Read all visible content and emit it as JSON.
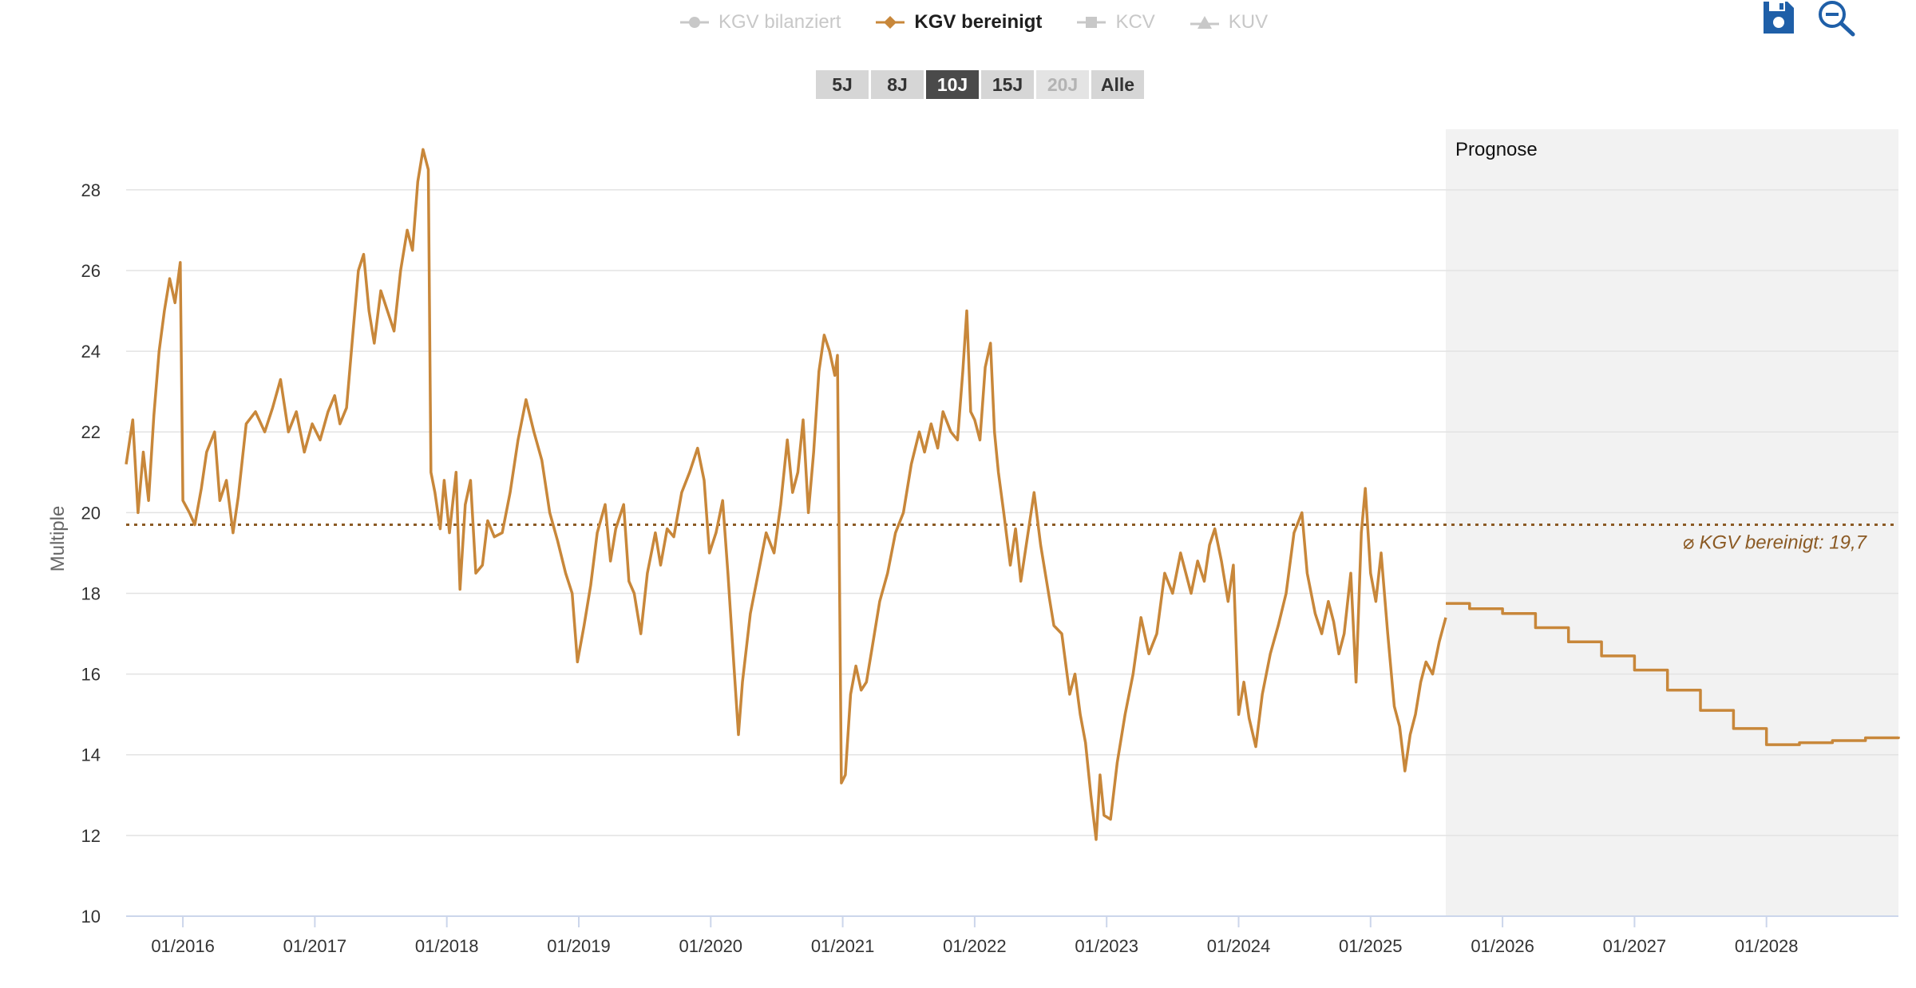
{
  "legend": [
    {
      "label": "KGV bilanziert",
      "marker": "circle",
      "active": false
    },
    {
      "label": "KGV bereinigt",
      "marker": "diamond",
      "active": true
    },
    {
      "label": "KCV",
      "marker": "square",
      "active": false
    },
    {
      "label": "KUV",
      "marker": "triangle",
      "active": false
    }
  ],
  "toolbar": {
    "save_icon": "save-icon",
    "zoom_out_icon": "zoom-out-icon"
  },
  "range_buttons": [
    {
      "label": "5J",
      "state": "normal"
    },
    {
      "label": "8J",
      "state": "normal"
    },
    {
      "label": "10J",
      "state": "selected"
    },
    {
      "label": "15J",
      "state": "normal"
    },
    {
      "label": "20J",
      "state": "disabled"
    },
    {
      "label": "Alle",
      "state": "normal"
    }
  ],
  "colors": {
    "series": "#c8873a",
    "mean_line": "#8b5a24",
    "forecast_bg": "#f2f2f2",
    "grid": "#e3e3e3",
    "button_selected": "#4a4a4a",
    "button_normal": "#d6d6d6"
  },
  "chart_data": {
    "type": "line",
    "ylabel": "Multiple",
    "ylim": [
      10,
      29.5
    ],
    "yticks": [
      10,
      12,
      14,
      16,
      18,
      20,
      22,
      24,
      26,
      28
    ],
    "xlim": [
      2015.57,
      2029.0
    ],
    "xtick_labels": [
      "01/2016",
      "01/2017",
      "01/2018",
      "01/2019",
      "01/2020",
      "01/2021",
      "01/2022",
      "01/2023",
      "01/2024",
      "01/2025",
      "01/2026",
      "01/2027",
      "01/2028"
    ],
    "xticks": [
      2016,
      2017,
      2018,
      2019,
      2020,
      2021,
      2022,
      2023,
      2024,
      2025,
      2026,
      2027,
      2028
    ],
    "forecast_start": 2025.57,
    "forecast_label": "Prognose",
    "mean": {
      "value": 19.7,
      "label": "⌀ KGV bereinigt: 19,7"
    },
    "series": [
      {
        "name": "KGV bereinigt",
        "points": [
          [
            2015.57,
            21.2
          ],
          [
            2015.62,
            22.3
          ],
          [
            2015.66,
            20.0
          ],
          [
            2015.7,
            21.5
          ],
          [
            2015.74,
            20.3
          ],
          [
            2015.78,
            22.4
          ],
          [
            2015.82,
            24.0
          ],
          [
            2015.86,
            25.0
          ],
          [
            2015.9,
            25.8
          ],
          [
            2015.94,
            25.2
          ],
          [
            2015.98,
            26.2
          ],
          [
            2016.0,
            20.3
          ],
          [
            2016.05,
            20.0
          ],
          [
            2016.09,
            19.7
          ],
          [
            2016.14,
            20.6
          ],
          [
            2016.18,
            21.5
          ],
          [
            2016.24,
            22.0
          ],
          [
            2016.28,
            20.3
          ],
          [
            2016.33,
            20.8
          ],
          [
            2016.38,
            19.5
          ],
          [
            2016.42,
            20.4
          ],
          [
            2016.48,
            22.2
          ],
          [
            2016.55,
            22.5
          ],
          [
            2016.62,
            22.0
          ],
          [
            2016.68,
            22.6
          ],
          [
            2016.74,
            23.3
          ],
          [
            2016.8,
            22.0
          ],
          [
            2016.86,
            22.5
          ],
          [
            2016.92,
            21.5
          ],
          [
            2016.98,
            22.2
          ],
          [
            2017.04,
            21.8
          ],
          [
            2017.1,
            22.5
          ],
          [
            2017.15,
            22.9
          ],
          [
            2017.19,
            22.2
          ],
          [
            2017.24,
            22.6
          ],
          [
            2017.29,
            24.5
          ],
          [
            2017.33,
            26.0
          ],
          [
            2017.37,
            26.4
          ],
          [
            2017.41,
            25.0
          ],
          [
            2017.45,
            24.2
          ],
          [
            2017.5,
            25.5
          ],
          [
            2017.55,
            25.0
          ],
          [
            2017.6,
            24.5
          ],
          [
            2017.65,
            26.0
          ],
          [
            2017.7,
            27.0
          ],
          [
            2017.74,
            26.5
          ],
          [
            2017.78,
            28.2
          ],
          [
            2017.82,
            29.0
          ],
          [
            2017.86,
            28.5
          ],
          [
            2017.88,
            21.0
          ],
          [
            2017.91,
            20.5
          ],
          [
            2017.95,
            19.6
          ],
          [
            2017.98,
            20.8
          ],
          [
            2018.02,
            19.5
          ],
          [
            2018.07,
            21.0
          ],
          [
            2018.1,
            18.1
          ],
          [
            2018.14,
            20.2
          ],
          [
            2018.18,
            20.8
          ],
          [
            2018.22,
            18.5
          ],
          [
            2018.27,
            18.7
          ],
          [
            2018.31,
            19.8
          ],
          [
            2018.36,
            19.4
          ],
          [
            2018.42,
            19.5
          ],
          [
            2018.48,
            20.5
          ],
          [
            2018.54,
            21.8
          ],
          [
            2018.6,
            22.8
          ],
          [
            2018.66,
            22.0
          ],
          [
            2018.72,
            21.3
          ],
          [
            2018.78,
            20.0
          ],
          [
            2018.84,
            19.3
          ],
          [
            2018.9,
            18.5
          ],
          [
            2018.95,
            18.0
          ],
          [
            2018.99,
            16.3
          ],
          [
            2019.04,
            17.2
          ],
          [
            2019.09,
            18.2
          ],
          [
            2019.14,
            19.5
          ],
          [
            2019.2,
            20.2
          ],
          [
            2019.24,
            18.8
          ],
          [
            2019.28,
            19.6
          ],
          [
            2019.34,
            20.2
          ],
          [
            2019.38,
            18.3
          ],
          [
            2019.42,
            18.0
          ],
          [
            2019.47,
            17.0
          ],
          [
            2019.52,
            18.5
          ],
          [
            2019.58,
            19.5
          ],
          [
            2019.62,
            18.7
          ],
          [
            2019.67,
            19.6
          ],
          [
            2019.72,
            19.4
          ],
          [
            2019.78,
            20.5
          ],
          [
            2019.84,
            21.0
          ],
          [
            2019.9,
            21.6
          ],
          [
            2019.95,
            20.8
          ],
          [
            2019.99,
            19.0
          ],
          [
            2020.04,
            19.5
          ],
          [
            2020.09,
            20.3
          ],
          [
            2020.13,
            18.5
          ],
          [
            2020.18,
            16.0
          ],
          [
            2020.21,
            14.5
          ],
          [
            2020.24,
            15.8
          ],
          [
            2020.3,
            17.5
          ],
          [
            2020.36,
            18.5
          ],
          [
            2020.42,
            19.5
          ],
          [
            2020.48,
            19.0
          ],
          [
            2020.53,
            20.2
          ],
          [
            2020.58,
            21.8
          ],
          [
            2020.62,
            20.5
          ],
          [
            2020.66,
            21.0
          ],
          [
            2020.7,
            22.3
          ],
          [
            2020.74,
            20.0
          ],
          [
            2020.78,
            21.5
          ],
          [
            2020.82,
            23.5
          ],
          [
            2020.86,
            24.4
          ],
          [
            2020.9,
            24.0
          ],
          [
            2020.94,
            23.4
          ],
          [
            2020.96,
            23.9
          ],
          [
            2020.99,
            13.3
          ],
          [
            2021.02,
            13.5
          ],
          [
            2021.06,
            15.5
          ],
          [
            2021.1,
            16.2
          ],
          [
            2021.14,
            15.6
          ],
          [
            2021.18,
            15.8
          ],
          [
            2021.22,
            16.6
          ],
          [
            2021.28,
            17.8
          ],
          [
            2021.34,
            18.5
          ],
          [
            2021.4,
            19.5
          ],
          [
            2021.46,
            20.0
          ],
          [
            2021.52,
            21.2
          ],
          [
            2021.58,
            22.0
          ],
          [
            2021.62,
            21.5
          ],
          [
            2021.67,
            22.2
          ],
          [
            2021.72,
            21.6
          ],
          [
            2021.76,
            22.5
          ],
          [
            2021.82,
            22.0
          ],
          [
            2021.87,
            21.8
          ],
          [
            2021.91,
            23.5
          ],
          [
            2021.94,
            25.0
          ],
          [
            2021.97,
            22.5
          ],
          [
            2022.0,
            22.3
          ],
          [
            2022.04,
            21.8
          ],
          [
            2022.08,
            23.6
          ],
          [
            2022.12,
            24.2
          ],
          [
            2022.15,
            22.0
          ],
          [
            2022.18,
            21.0
          ],
          [
            2022.22,
            20.0
          ],
          [
            2022.27,
            18.7
          ],
          [
            2022.31,
            19.6
          ],
          [
            2022.35,
            18.3
          ],
          [
            2022.4,
            19.4
          ],
          [
            2022.45,
            20.5
          ],
          [
            2022.5,
            19.2
          ],
          [
            2022.55,
            18.2
          ],
          [
            2022.6,
            17.2
          ],
          [
            2022.66,
            17.0
          ],
          [
            2022.72,
            15.5
          ],
          [
            2022.76,
            16.0
          ],
          [
            2022.8,
            15.0
          ],
          [
            2022.84,
            14.3
          ],
          [
            2022.88,
            13.0
          ],
          [
            2022.92,
            11.9
          ],
          [
            2022.95,
            13.5
          ],
          [
            2022.98,
            12.5
          ],
          [
            2023.03,
            12.4
          ],
          [
            2023.08,
            13.8
          ],
          [
            2023.14,
            15.0
          ],
          [
            2023.2,
            16.0
          ],
          [
            2023.26,
            17.4
          ],
          [
            2023.32,
            16.5
          ],
          [
            2023.38,
            17.0
          ],
          [
            2023.44,
            18.5
          ],
          [
            2023.5,
            18.0
          ],
          [
            2023.56,
            19.0
          ],
          [
            2023.6,
            18.5
          ],
          [
            2023.64,
            18.0
          ],
          [
            2023.69,
            18.8
          ],
          [
            2023.74,
            18.3
          ],
          [
            2023.78,
            19.2
          ],
          [
            2023.82,
            19.6
          ],
          [
            2023.87,
            18.8
          ],
          [
            2023.92,
            17.8
          ],
          [
            2023.96,
            18.7
          ],
          [
            2024.0,
            15.0
          ],
          [
            2024.04,
            15.8
          ],
          [
            2024.08,
            14.9
          ],
          [
            2024.13,
            14.2
          ],
          [
            2024.18,
            15.5
          ],
          [
            2024.24,
            16.5
          ],
          [
            2024.3,
            17.2
          ],
          [
            2024.36,
            18.0
          ],
          [
            2024.42,
            19.5
          ],
          [
            2024.48,
            20.0
          ],
          [
            2024.52,
            18.5
          ],
          [
            2024.58,
            17.5
          ],
          [
            2024.63,
            17.0
          ],
          [
            2024.68,
            17.8
          ],
          [
            2024.72,
            17.3
          ],
          [
            2024.76,
            16.5
          ],
          [
            2024.8,
            17.0
          ],
          [
            2024.85,
            18.5
          ],
          [
            2024.89,
            15.8
          ],
          [
            2024.93,
            19.5
          ],
          [
            2024.96,
            20.6
          ],
          [
            2025.0,
            18.5
          ],
          [
            2025.04,
            17.8
          ],
          [
            2025.08,
            19.0
          ],
          [
            2025.13,
            17.0
          ],
          [
            2025.18,
            15.2
          ],
          [
            2025.22,
            14.7
          ],
          [
            2025.26,
            13.6
          ],
          [
            2025.3,
            14.5
          ],
          [
            2025.34,
            15.0
          ],
          [
            2025.38,
            15.8
          ],
          [
            2025.42,
            16.3
          ],
          [
            2025.47,
            16.0
          ],
          [
            2025.52,
            16.8
          ],
          [
            2025.57,
            17.4
          ]
        ]
      },
      {
        "name": "KGV bereinigt Prognose",
        "step": true,
        "points": [
          [
            2025.57,
            17.75
          ],
          [
            2025.75,
            17.62
          ],
          [
            2026.0,
            17.5
          ],
          [
            2026.25,
            17.15
          ],
          [
            2026.5,
            16.8
          ],
          [
            2026.75,
            16.45
          ],
          [
            2027.0,
            16.1
          ],
          [
            2027.25,
            15.6
          ],
          [
            2027.5,
            15.1
          ],
          [
            2027.75,
            14.65
          ],
          [
            2028.0,
            14.25
          ],
          [
            2028.25,
            14.3
          ],
          [
            2028.5,
            14.35
          ],
          [
            2028.75,
            14.42
          ],
          [
            2029.0,
            14.45
          ]
        ]
      }
    ]
  }
}
